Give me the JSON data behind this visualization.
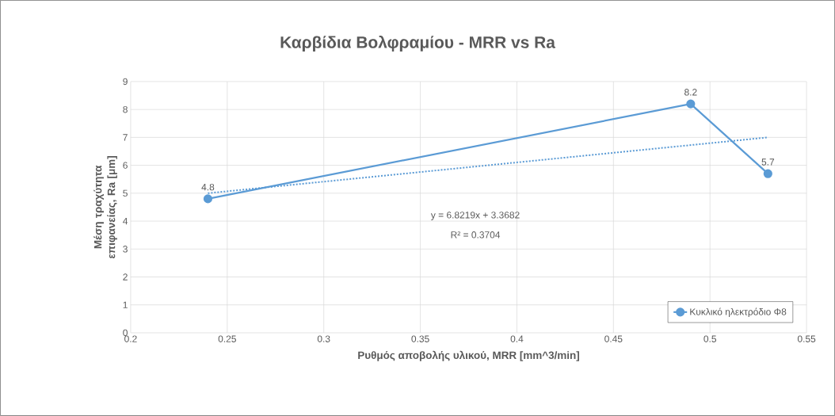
{
  "chart_data": {
    "type": "line",
    "title": "Καρβίδια Βολφραμίου - MRR vs Ra",
    "xlabel": "Ρυθμός αποβολής υλικού, MRR [mm^3/min]",
    "ylabel": "Μέση τραχύτητα επιφανείας, Ra [μm]",
    "xlim": [
      0.2,
      0.55
    ],
    "xticks": [
      0.2,
      0.25,
      0.3,
      0.35,
      0.4,
      0.45,
      0.5,
      0.55
    ],
    "ylim": [
      0,
      9
    ],
    "yticks": [
      0,
      1,
      2,
      3,
      4,
      5,
      6,
      7,
      8,
      9
    ],
    "grid": true,
    "legend": "bottom right",
    "annotations": [
      "y = 6.8219x + 3.3682",
      "R² = 0.3704"
    ],
    "series": [
      {
        "name": "Κυκλικό ηλεκτρόδιο Φ8",
        "color": "#5b9bd5",
        "marker": "circle",
        "line_style": "solid",
        "x": [
          0.24,
          0.49,
          0.53
        ],
        "values": [
          4.8,
          8.2,
          5.7
        ],
        "value_labels": [
          "4.8",
          "8.2",
          "5.7"
        ]
      },
      {
        "type": "line",
        "color": "#5b9bd5",
        "marker": "none",
        "line_style": "dotted",
        "x": [
          0.24,
          0.53
        ],
        "values": [
          5.0,
          7.0
        ]
      }
    ]
  }
}
